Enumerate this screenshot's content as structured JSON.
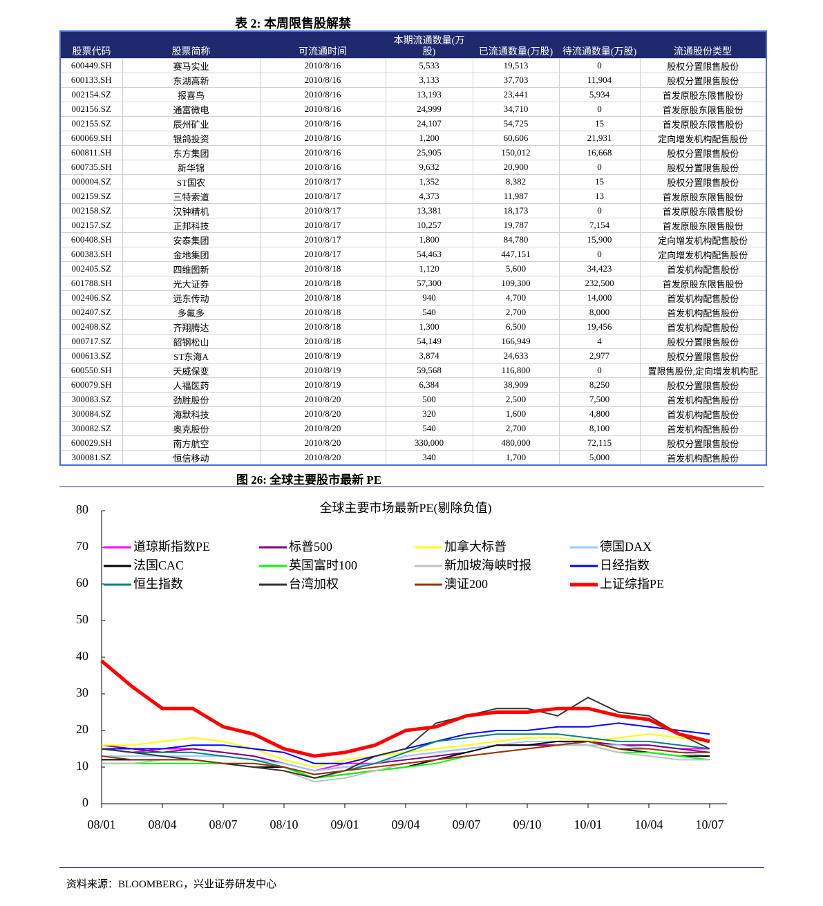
{
  "table_title": "表 2: 本周限售股解禁",
  "table": {
    "headers": [
      "股票代码",
      "股票简称",
      "可流通时间",
      "本期流通数量(万股)",
      "已流通数量(万股)",
      "待流通数量(万股)",
      "流通股份类型"
    ],
    "rows": [
      [
        "600449.SH",
        "赛马实业",
        "2010/8/16",
        "5,533",
        "19,513",
        "0",
        "股权分置限售股份"
      ],
      [
        "600133.SH",
        "东湖高新",
        "2010/8/16",
        "3,133",
        "37,703",
        "11,904",
        "股权分置限售股份"
      ],
      [
        "002154.SZ",
        "报喜鸟",
        "2010/8/16",
        "13,193",
        "23,441",
        "5,934",
        "首发原股东限售股份"
      ],
      [
        "002156.SZ",
        "通富微电",
        "2010/8/16",
        "24,999",
        "34,710",
        "0",
        "首发原股东限售股份"
      ],
      [
        "002155.SZ",
        "辰州矿业",
        "2010/8/16",
        "24,107",
        "54,725",
        "15",
        "首发原股东限售股份"
      ],
      [
        "600069.SH",
        "银鸽投资",
        "2010/8/16",
        "1,200",
        "60,606",
        "21,931",
        "定向增发机构配售股份"
      ],
      [
        "600811.SH",
        "东方集团",
        "2010/8/16",
        "25,905",
        "150,012",
        "16,668",
        "股权分置限售股份"
      ],
      [
        "600735.SH",
        "新华锦",
        "2010/8/16",
        "9,632",
        "20,900",
        "0",
        "股权分置限售股份"
      ],
      [
        "000004.SZ",
        "ST国农",
        "2010/8/17",
        "1,352",
        "8,382",
        "15",
        "股权分置限售股份"
      ],
      [
        "002159.SZ",
        "三特索道",
        "2010/8/17",
        "4,373",
        "11,987",
        "13",
        "首发原股东限售股份"
      ],
      [
        "002158.SZ",
        "汉钟精机",
        "2010/8/17",
        "13,381",
        "18,173",
        "0",
        "首发原股东限售股份"
      ],
      [
        "002157.SZ",
        "正邦科技",
        "2010/8/17",
        "10,257",
        "19,787",
        "7,154",
        "首发原股东限售股份"
      ],
      [
        "600408.SH",
        "安泰集团",
        "2010/8/17",
        "1,800",
        "84,780",
        "15,900",
        "定向增发机构配售股份"
      ],
      [
        "600383.SH",
        "金地集团",
        "2010/8/17",
        "54,463",
        "447,151",
        "0",
        "定向增发机构配售股份"
      ],
      [
        "002405.SZ",
        "四维图新",
        "2010/8/18",
        "1,120",
        "5,600",
        "34,423",
        "首发机构配售股份"
      ],
      [
        "601788.SH",
        "光大证券",
        "2010/8/18",
        "57,300",
        "109,300",
        "232,500",
        "首发原股东限售股份"
      ],
      [
        "002406.SZ",
        "远东传动",
        "2010/8/18",
        "940",
        "4,700",
        "14,000",
        "首发机构配售股份"
      ],
      [
        "002407.SZ",
        "多氟多",
        "2010/8/18",
        "540",
        "2,700",
        "8,000",
        "首发机构配售股份"
      ],
      [
        "002408.SZ",
        "齐翔腾达",
        "2010/8/18",
        "1,300",
        "6,500",
        "19,456",
        "首发机构配售股份"
      ],
      [
        "000717.SZ",
        "韶钢松山",
        "2010/8/18",
        "54,149",
        "166,949",
        "4",
        "股权分置限售股份"
      ],
      [
        "000613.SZ",
        "ST东海A",
        "2010/8/19",
        "3,874",
        "24,633",
        "2,977",
        "股权分置限售股份"
      ],
      [
        "600550.SH",
        "天威保变",
        "2010/8/19",
        "59,568",
        "116,800",
        "0",
        "置限售股份,定向增发机构配"
      ],
      [
        "600079.SH",
        "人福医药",
        "2010/8/19",
        "6,384",
        "38,909",
        "8,250",
        "股权分置限售股份"
      ],
      [
        "300083.SZ",
        "劲胜股份",
        "2010/8/20",
        "500",
        "2,500",
        "7,500",
        "首发机构配售股份"
      ],
      [
        "300084.SZ",
        "海默科技",
        "2010/8/20",
        "320",
        "1,600",
        "4,800",
        "首发机构配售股份"
      ],
      [
        "300082.SZ",
        "奥克股份",
        "2010/8/20",
        "540",
        "2,700",
        "8,100",
        "首发机构配售股份"
      ],
      [
        "600029.SH",
        "南方航空",
        "2010/8/20",
        "330,000",
        "480,000",
        "72,115",
        "股权分置限售股份"
      ],
      [
        "300081.SZ",
        "恒信移动",
        "2010/8/20",
        "340",
        "1,700",
        "5,000",
        "首发机构配售股份"
      ]
    ]
  },
  "figure_title": "图 26: 全球主要股市最新 PE",
  "chart_data": {
    "type": "line",
    "title": "全球主要市场最新PE(剔除负值)",
    "categories": [
      "08/01",
      null,
      "08/04",
      null,
      "08/07",
      null,
      "08/10",
      null,
      "09/01",
      null,
      "09/04",
      null,
      "09/07",
      null,
      "09/10",
      null,
      "10/01",
      null,
      "10/04",
      null,
      "10/07"
    ],
    "ylim": [
      0,
      80
    ],
    "yticks": [
      0,
      10,
      20,
      30,
      40,
      50,
      60,
      70,
      80
    ],
    "series": [
      {
        "name": "道琼斯指数PE",
        "color": "#ff00ff",
        "values": [
          15,
          14,
          15,
          15,
          14,
          13,
          11,
          9,
          11,
          11,
          13,
          14,
          15,
          16,
          16,
          16,
          17,
          16,
          16,
          15,
          15
        ]
      },
      {
        "name": "标普500",
        "color": "#800080",
        "values": [
          16,
          15,
          14,
          15,
          14,
          13,
          11,
          9,
          10,
          11,
          12,
          13,
          14,
          16,
          16,
          16,
          17,
          16,
          16,
          15,
          14
        ]
      },
      {
        "name": "加拿大标普",
        "color": "#ffff00",
        "values": [
          16,
          16,
          17,
          18,
          17,
          15,
          12,
          10,
          12,
          13,
          14,
          15,
          16,
          17,
          18,
          18,
          17,
          18,
          19,
          18,
          17
        ]
      },
      {
        "name": "德国DAX",
        "color": "#99ccff",
        "values": [
          13,
          13,
          13,
          13,
          13,
          12,
          11,
          9,
          10,
          11,
          13,
          14,
          15,
          16,
          17,
          17,
          16,
          16,
          15,
          14,
          13
        ]
      },
      {
        "name": "法国CAC",
        "color": "#000000",
        "values": [
          12,
          12,
          12,
          12,
          11,
          10,
          10,
          7,
          8,
          9,
          10,
          12,
          14,
          16,
          16,
          17,
          17,
          15,
          14,
          13,
          13
        ]
      },
      {
        "name": "英国富时100",
        "color": "#00ff00",
        "values": [
          11,
          11,
          11,
          11,
          11,
          11,
          10,
          7,
          8,
          9,
          10,
          11,
          13,
          14,
          15,
          16,
          16,
          14,
          14,
          13,
          12
        ]
      },
      {
        "name": "新加坡海峡时报",
        "color": "#c0c0c0",
        "values": [
          11,
          11,
          12,
          12,
          11,
          10,
          9,
          6,
          7,
          9,
          11,
          12,
          13,
          14,
          15,
          16,
          16,
          14,
          13,
          12,
          12
        ]
      },
      {
        "name": "日经指数",
        "color": "#0000ff",
        "values": [
          15,
          15,
          15,
          16,
          16,
          15,
          14,
          11,
          11,
          13,
          15,
          17,
          19,
          20,
          20,
          21,
          21,
          22,
          21,
          20,
          19
        ]
      },
      {
        "name": "恒生指数",
        "color": "#008080",
        "values": [
          15,
          14,
          14,
          14,
          13,
          12,
          10,
          8,
          9,
          11,
          14,
          17,
          18,
          19,
          19,
          19,
          18,
          17,
          17,
          16,
          15
        ]
      },
      {
        "name": "台湾加权",
        "color": "#333333",
        "values": [
          15,
          14,
          13,
          12,
          11,
          10,
          9,
          7,
          9,
          13,
          15,
          22,
          24,
          26,
          26,
          24,
          29,
          25,
          24,
          19,
          15
        ]
      },
      {
        "name": "澳证200",
        "color": "#993300",
        "values": [
          13,
          12,
          12,
          12,
          11,
          11,
          10,
          8,
          9,
          10,
          11,
          12,
          13,
          14,
          15,
          16,
          17,
          15,
          15,
          14,
          14
        ]
      },
      {
        "name": "上证综指PE",
        "color": "#ff0000",
        "values": [
          39,
          32,
          26,
          26,
          21,
          19,
          15,
          13,
          14,
          16,
          20,
          21,
          24,
          25,
          25,
          26,
          26,
          24,
          23,
          19,
          17
        ]
      }
    ]
  },
  "source": "资料来源：BLOOMBERG，兴业证券研发中心"
}
